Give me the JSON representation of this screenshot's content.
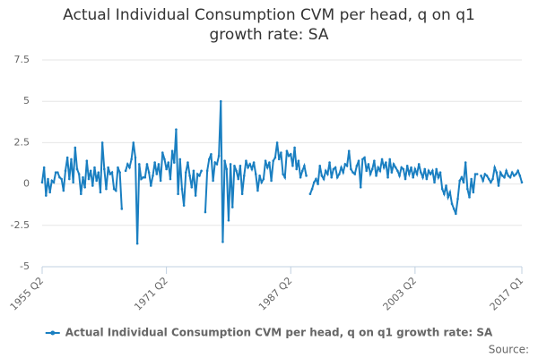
{
  "chart_data": {
    "type": "line",
    "title": "Actual Individual Consumption CVM per head, q on q1 growth rate: SA",
    "source": "Source:",
    "categories": [
      "1955 Q2",
      null,
      null,
      null,
      null,
      null,
      null,
      null,
      null,
      null,
      null,
      null,
      null,
      null,
      null,
      null,
      null,
      null,
      null,
      null,
      null,
      null,
      null,
      null,
      null,
      null,
      null,
      null,
      null,
      null,
      null,
      null,
      null,
      null,
      null,
      null,
      null,
      null,
      null,
      null,
      null,
      null,
      null,
      null,
      null,
      null,
      null,
      null,
      null,
      null,
      null,
      null,
      null,
      null,
      null,
      null,
      null,
      null,
      null,
      null,
      null,
      null,
      null,
      null,
      "1971 Q2",
      null,
      null,
      null,
      null,
      null,
      null,
      null,
      null,
      null,
      null,
      null,
      null,
      null,
      null,
      null,
      null,
      null,
      null,
      null,
      null,
      null,
      null,
      null,
      null,
      null,
      null,
      null,
      null,
      null,
      null,
      null,
      null,
      null,
      null,
      null,
      null,
      null,
      null,
      null,
      null,
      null,
      null,
      null,
      null,
      null,
      null,
      null,
      null,
      null,
      null,
      null,
      null,
      null,
      null,
      null,
      null,
      null,
      null,
      null,
      null,
      null,
      null,
      null,
      "1987 Q2",
      null,
      null,
      null,
      null,
      null,
      null,
      null,
      null,
      null,
      null,
      null,
      null,
      null,
      null,
      null,
      null,
      null,
      null,
      null,
      null,
      null,
      null,
      null,
      null,
      null,
      null,
      null,
      null,
      null,
      null,
      null,
      null,
      null,
      null,
      null,
      null,
      null,
      null,
      null,
      null,
      null,
      null,
      null,
      null,
      null,
      null,
      null,
      null,
      null,
      null,
      null,
      null,
      null,
      null,
      null,
      null,
      null,
      null,
      null,
      null,
      null,
      null,
      null,
      "2003 Q2",
      null,
      null,
      null,
      null,
      null,
      null,
      null,
      null,
      null,
      null,
      null,
      null,
      null,
      null,
      null,
      null,
      null,
      null,
      null,
      null,
      null,
      null,
      null,
      null,
      null,
      null,
      null,
      null,
      null,
      null,
      null,
      null,
      null,
      null,
      null,
      null,
      null,
      null,
      null,
      null,
      null,
      null,
      null,
      null,
      null,
      null,
      null,
      null,
      null,
      null,
      null,
      null,
      null,
      null,
      "2017 Q1"
    ],
    "series": [
      {
        "name": "Actual Individual Consumption CVM per head, q on q1 growth rate: SA",
        "color": "#1a7fc1",
        "values": [
          0.1,
          1.0,
          -0.7,
          0.3,
          -0.5,
          0.2,
          0.1,
          0.7,
          0.7,
          0.4,
          0.3,
          -0.4,
          0.8,
          1.6,
          0.3,
          1.5,
          0.1,
          2.2,
          0.9,
          0.6,
          -0.6,
          0.4,
          -0.2,
          1.4,
          0.3,
          0.8,
          -0.1,
          1.0,
          0.2,
          0.7,
          -0.5,
          2.5,
          0.9,
          -0.3,
          1.0,
          0.6,
          0.7,
          -0.3,
          -0.4,
          1.0,
          0.7,
          -1.5,
          null,
          0.8,
          1.2,
          1.0,
          1.5,
          2.5,
          1.6,
          -3.6,
          1.2,
          0.3,
          0.4,
          0.4,
          1.2,
          0.7,
          -0.1,
          0.5,
          1.3,
          0.6,
          1.2,
          0.2,
          1.9,
          1.5,
          0.9,
          1.3,
          0.3,
          2.0,
          1.3,
          3.3,
          -0.6,
          1.5,
          -0.3,
          -1.3,
          0.7,
          1.3,
          0.5,
          -0.2,
          0.8,
          -0.7,
          0.6,
          0.5,
          0.8,
          null,
          -1.7,
          0.8,
          1.5,
          1.8,
          0.2,
          1.3,
          1.2,
          1.7,
          5.0,
          -3.5,
          1.4,
          0.9,
          -2.2,
          1.2,
          -1.4,
          1.1,
          0.8,
          0.3,
          1.1,
          -0.6,
          0.5,
          1.4,
          1.0,
          1.2,
          0.9,
          1.3,
          0.6,
          -0.4,
          0.5,
          0.1,
          0.3,
          1.4,
          1.0,
          1.3,
          0.2,
          1.4,
          1.6,
          2.5,
          1.5,
          1.9,
          0.6,
          0.4,
          2.0,
          1.7,
          1.8,
          1.1,
          2.2,
          0.9,
          1.4,
          0.4,
          0.8,
          1.1,
          0.5,
          null,
          -0.6,
          -0.3,
          0.1,
          0.3,
          0.0,
          1.1,
          0.5,
          0.3,
          0.8,
          0.6,
          1.3,
          0.4,
          0.9,
          1.0,
          0.4,
          0.6,
          1.0,
          0.7,
          1.2,
          1.1,
          2.0,
          0.9,
          0.7,
          0.6,
          1.1,
          1.4,
          -0.2,
          1.5,
          1.6,
          0.8,
          1.2,
          0.6,
          0.9,
          1.4,
          0.5,
          1.0,
          0.8,
          1.5,
          1.0,
          1.3,
          0.4,
          1.5,
          0.7,
          1.2,
          1.0,
          0.8,
          0.5,
          1.0,
          0.9,
          0.3,
          1.1,
          0.6,
          1.0,
          0.4,
          0.9,
          0.6,
          1.2,
          0.7,
          0.4,
          0.9,
          0.3,
          0.8,
          0.6,
          0.8,
          0.1,
          0.9,
          0.4,
          0.7,
          -0.3,
          -0.6,
          -0.1,
          -0.8,
          -0.5,
          -1.2,
          -1.5,
          -1.8,
          -0.9,
          0.2,
          0.4,
          0.1,
          1.3,
          -0.3,
          -0.8,
          0.3,
          -0.5,
          0.6,
          0.6,
          null,
          0.5,
          0.2,
          0.6,
          0.5,
          0.3,
          0.1,
          0.3,
          1.0,
          0.7,
          -0.1,
          0.7,
          0.5,
          0.4,
          0.8,
          0.5,
          0.4,
          0.7,
          0.5,
          0.6,
          0.8,
          0.5,
          0.1
        ]
      }
    ],
    "ylim": [
      -5,
      7.5
    ],
    "yticks": [
      7.5,
      5,
      2.5,
      0,
      -2.5,
      -5
    ],
    "grid": true
  }
}
